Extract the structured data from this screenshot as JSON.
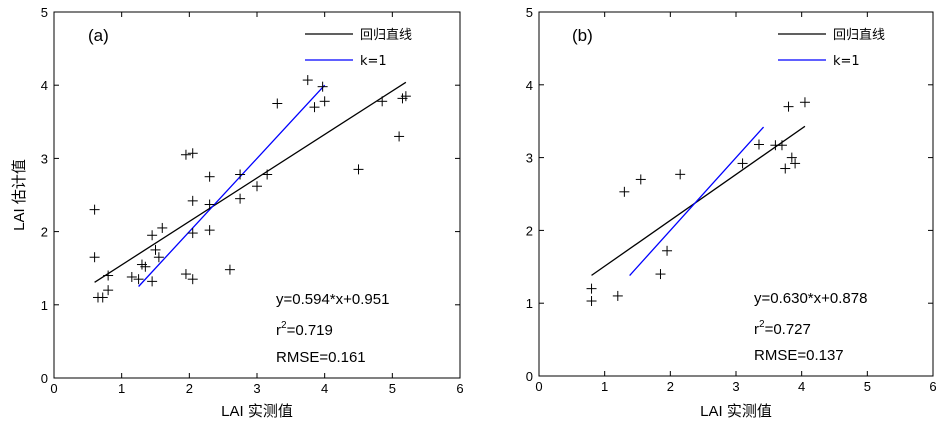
{
  "chart_data": [
    {
      "type": "scatter",
      "panel_label": "(a)",
      "xlabel": "LAI 实测值",
      "ylabel": "LAI 估计值",
      "xlim": [
        0,
        6
      ],
      "ylim": [
        0,
        5
      ],
      "xticks": [
        "0",
        "1",
        "2",
        "3",
        "4",
        "5",
        "6"
      ],
      "yticks": [
        "0",
        "1",
        "2",
        "3",
        "4",
        "5"
      ],
      "grid": false,
      "legend_position": "top-right",
      "marker": "+",
      "points": [
        [
          0.6,
          2.3
        ],
        [
          0.6,
          1.65
        ],
        [
          0.65,
          1.1
        ],
        [
          0.72,
          1.1
        ],
        [
          0.8,
          1.4
        ],
        [
          0.8,
          1.2
        ],
        [
          1.15,
          1.38
        ],
        [
          1.25,
          1.35
        ],
        [
          1.3,
          1.55
        ],
        [
          1.35,
          1.52
        ],
        [
          1.45,
          1.95
        ],
        [
          1.45,
          1.32
        ],
        [
          1.5,
          1.75
        ],
        [
          1.55,
          1.65
        ],
        [
          1.6,
          2.05
        ],
        [
          1.95,
          3.05
        ],
        [
          2.05,
          3.07
        ],
        [
          1.95,
          1.42
        ],
        [
          2.05,
          1.35
        ],
        [
          2.05,
          2.42
        ],
        [
          2.05,
          1.98
        ],
        [
          2.3,
          2.75
        ],
        [
          2.3,
          2.37
        ],
        [
          2.3,
          2.02
        ],
        [
          2.6,
          1.48
        ],
        [
          2.75,
          2.78
        ],
        [
          2.75,
          2.45
        ],
        [
          3.0,
          2.62
        ],
        [
          3.15,
          2.78
        ],
        [
          3.3,
          3.75
        ],
        [
          3.75,
          4.07
        ],
        [
          3.85,
          3.7
        ],
        [
          3.97,
          3.98
        ],
        [
          4.0,
          3.78
        ],
        [
          4.5,
          2.85
        ],
        [
          4.85,
          3.78
        ],
        [
          5.1,
          3.3
        ],
        [
          5.15,
          3.82
        ],
        [
          5.2,
          3.85
        ]
      ],
      "series": [
        {
          "name": "回归直线",
          "color": "#000000",
          "x": [
            0.6,
            5.2
          ],
          "y": [
            1.307,
            4.04
          ]
        },
        {
          "name": "k=1",
          "color": "#0000ff",
          "x": [
            1.25,
            4.0
          ],
          "y": [
            1.25,
            4.0
          ]
        }
      ],
      "annotations": {
        "equation": "y=0.594*x+0.951",
        "r2_prefix": "r",
        "r2_sup": "2",
        "r2_value": "=0.719",
        "rmse": "RMSE=0.161"
      }
    },
    {
      "type": "scatter",
      "panel_label": "(b)",
      "xlabel": "LAI 实测值",
      "ylabel": "",
      "xlim": [
        0,
        6
      ],
      "ylim": [
        0,
        5
      ],
      "xticks": [
        "0",
        "1",
        "2",
        "3",
        "4",
        "5",
        "6"
      ],
      "yticks": [
        "0",
        "1",
        "2",
        "3",
        "4",
        "5"
      ],
      "grid": false,
      "legend_position": "top-right",
      "marker": "+",
      "points": [
        [
          0.8,
          1.2
        ],
        [
          0.8,
          1.03
        ],
        [
          1.2,
          1.1
        ],
        [
          1.3,
          2.53
        ],
        [
          1.55,
          2.7
        ],
        [
          1.85,
          1.4
        ],
        [
          1.95,
          1.72
        ],
        [
          2.15,
          2.77
        ],
        [
          3.1,
          2.92
        ],
        [
          3.35,
          3.18
        ],
        [
          3.6,
          3.17
        ],
        [
          3.7,
          3.17
        ],
        [
          3.75,
          2.85
        ],
        [
          3.8,
          3.7
        ],
        [
          3.85,
          3.0
        ],
        [
          3.9,
          2.92
        ],
        [
          4.05,
          3.76
        ]
      ],
      "series": [
        {
          "name": "回归直线",
          "color": "#000000",
          "x": [
            0.8,
            4.05
          ],
          "y": [
            1.382,
            3.43
          ]
        },
        {
          "name": "k=1",
          "color": "#0000ff",
          "x": [
            1.38,
            3.42
          ],
          "y": [
            1.38,
            3.42
          ]
        }
      ],
      "annotations": {
        "equation": "y=0.630*x+0.878",
        "r2_prefix": "r",
        "r2_sup": "2",
        "r2_value": "=0.727",
        "rmse": "RMSE=0.137"
      }
    }
  ]
}
